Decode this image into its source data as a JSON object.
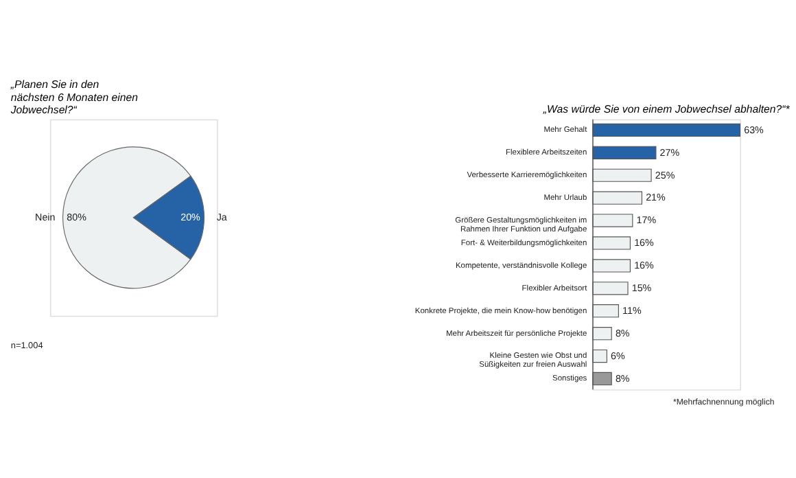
{
  "chart_data": [
    {
      "type": "pie",
      "title": "„Planen Sie in den\nnächsten 6 Monaten einen\nJobwechsel?“",
      "categories": [
        "Nein",
        "Ja"
      ],
      "values": [
        80,
        20
      ],
      "colors": [
        "#eef1f2",
        "#2563a6"
      ],
      "value_labels": [
        "80%",
        "20%"
      ],
      "annotations": [
        "n=1.004"
      ]
    },
    {
      "type": "bar",
      "orientation": "horizontal",
      "title": "„Was würde Sie von einem Jobwechsel abhalten?“*",
      "categories": [
        "Mehr Gehalt",
        "Flexiblere Arbeitszeiten",
        "Verbesserte Karrieremöglichkeiten",
        "Mehr Urlaub",
        "Größere Gestaltungsmöglichkeiten im\nRahmen Ihrer Funktion und Aufgabe",
        "Fort- & Weiterbildungsmöglichkeiten",
        "Kompetente, verständnisvolle Kollege",
        "Flexibler Arbeitsort",
        "Konkrete Projekte, die mein Know-how benötigen",
        "Mehr Arbeitszeit für persönliche Projekte",
        "Kleine Gesten wie Obst und\nSüßigkeiten zur freien Auswahl",
        "Sonstiges"
      ],
      "values": [
        63,
        27,
        25,
        21,
        17,
        16,
        16,
        15,
        11,
        8,
        6,
        8
      ],
      "colors": [
        "#2563a6",
        "#2563a6",
        "#eef1f2",
        "#eef1f2",
        "#eef1f2",
        "#eef1f2",
        "#eef1f2",
        "#eef1f2",
        "#eef1f2",
        "#eef1f2",
        "#eef1f2",
        "#999999"
      ],
      "value_labels": [
        "63%",
        "27%",
        "25%",
        "21%",
        "17%",
        "16%",
        "16%",
        "15%",
        "11%",
        "8%",
        "6%",
        "8%"
      ],
      "annotations": [
        "*Mehrfachnennung möglich"
      ]
    }
  ]
}
